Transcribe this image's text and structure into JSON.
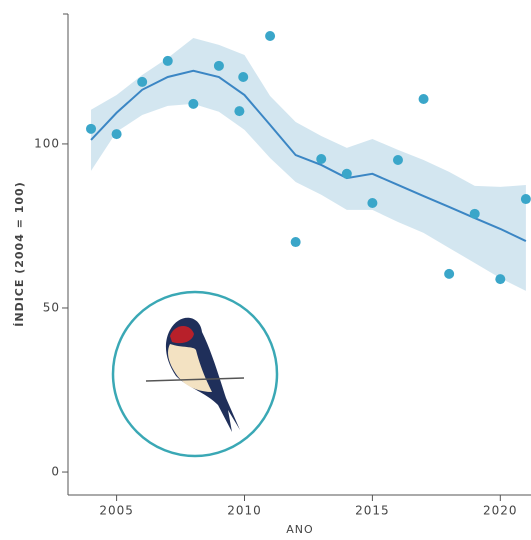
{
  "chart_data": {
    "type": "line",
    "y_label": "ÍNDICE (2004 = 100)",
    "x_label": "ANO",
    "xlim": [
      2003.1,
      2021.2
    ],
    "xticks": [
      2005,
      2010,
      2015,
      2020
    ],
    "ylim": [
      -7,
      139.6
    ],
    "yticks": [
      0,
      50,
      100
    ],
    "x": [
      2004,
      2005,
      2006,
      2007,
      2008,
      2009,
      2010,
      2011,
      2012,
      2013,
      2014,
      2015,
      2016,
      2017,
      2018,
      2019,
      2020,
      2021
    ],
    "trend": {
      "color": "#3b86c4",
      "values": [
        101.2,
        109.5,
        116.5,
        120.4,
        122.3,
        120.4,
        114.9,
        105.8,
        96.6,
        93.6,
        89.6,
        90.9,
        87.5,
        84.1,
        80.8,
        77.4,
        74.1,
        70.4
      ]
    },
    "band": {
      "color": "#d3e6f0",
      "upper": [
        110.4,
        114.9,
        121,
        126.2,
        132.3,
        130.2,
        127.1,
        114.6,
        106.7,
        102.4,
        98.8,
        101.5,
        98.2,
        95.1,
        91.5,
        87.2,
        86.9,
        87.5
      ],
      "lower": [
        91.8,
        103.7,
        108.8,
        111.6,
        112.2,
        109.8,
        104.3,
        95.7,
        88.4,
        84.5,
        79.9,
        79.9,
        76.2,
        72.9,
        68.3,
        63.7,
        59.1,
        55.2
      ]
    },
    "points": {
      "color": "#3aa6c9",
      "x": [
        2004,
        2005,
        2006,
        2007,
        2008,
        2009,
        2009.8,
        2009.95,
        2011,
        2012,
        2013,
        2014,
        2015,
        2016,
        2017,
        2018,
        2019,
        2020,
        2021
      ],
      "values": [
        104.6,
        103,
        118.9,
        125.3,
        112.2,
        123.8,
        110,
        120.4,
        132.9,
        70.1,
        95.4,
        90.9,
        82,
        95.1,
        113.7,
        60.4,
        78.7,
        58.8,
        83.2
      ]
    }
  }
}
